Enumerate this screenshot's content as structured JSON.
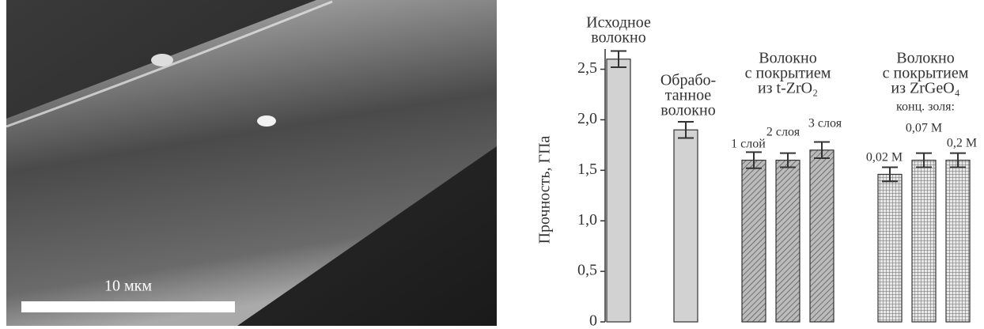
{
  "image": {
    "scale_label": "10 мкм"
  },
  "chart_data": {
    "type": "bar",
    "y_label": "Прочность, ГПа",
    "ylim": [
      0,
      2.7
    ],
    "yticks": [
      0,
      {
        "value": 0.5,
        "label": "0,5"
      },
      {
        "value": 1.0,
        "label": "1,0"
      },
      {
        "value": 1.5,
        "label": "1,5"
      },
      {
        "value": 2.0,
        "label": "2,0"
      },
      {
        "value": 2.5,
        "label": "2,5"
      }
    ],
    "categories": [
      null,
      null,
      "1 слой",
      "2 слоя",
      "3 слоя",
      "0,02 М",
      "0,07 М",
      "0,2 М"
    ],
    "values": [
      2.6,
      1.9,
      1.6,
      1.6,
      1.7,
      1.46,
      1.6,
      1.6
    ],
    "errors": [
      0.08,
      0.08,
      0.08,
      0.07,
      0.08,
      0.07,
      0.07,
      0.07
    ],
    "fills": [
      "solid",
      "solid",
      "diagonal",
      "diagonal",
      "diagonal",
      "grid",
      "grid",
      "grid"
    ],
    "color": "#d2d2d2",
    "groups": [
      {
        "lines": [
          "Исходное",
          "волокно"
        ]
      },
      {
        "lines": [
          "Обрабо-",
          "танное",
          "волокно"
        ]
      },
      {
        "lines": [
          "Волокно",
          "с покрытием",
          "из t-ZrO₂"
        ]
      },
      {
        "lines": [
          "Волокно",
          "с покрытием",
          "из ZrGeO₄",
          "конц. золя:"
        ]
      }
    ]
  }
}
